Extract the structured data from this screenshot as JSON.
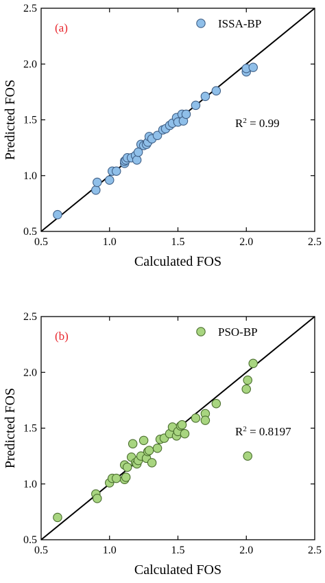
{
  "chart_data": [
    {
      "type": "scatter",
      "panel_label": "(a)",
      "legend_label": "ISSA-BP",
      "r2_label_prefix": "R",
      "r2_label_sup": "2",
      "r2_label_suffix": " = 0.99",
      "xlabel": "Calculated FOS",
      "ylabel": "Predicted FOS",
      "xlim": [
        0.5,
        2.5
      ],
      "ylim": [
        0.5,
        2.5
      ],
      "xticks": [
        "0.5",
        "1.0",
        "1.5",
        "2.0",
        "2.5"
      ],
      "yticks": [
        "0.5",
        "1.0",
        "1.5",
        "2.0",
        "2.5"
      ],
      "reference_line": "y = x",
      "marker_color": "#8fbfe9",
      "marker_edge": "#3f5f86",
      "legend_position": "top-right",
      "grid": false,
      "points": [
        {
          "x": 0.62,
          "y": 0.65
        },
        {
          "x": 0.9,
          "y": 0.87
        },
        {
          "x": 0.91,
          "y": 0.94
        },
        {
          "x": 1.0,
          "y": 0.96
        },
        {
          "x": 1.02,
          "y": 1.04
        },
        {
          "x": 1.05,
          "y": 1.04
        },
        {
          "x": 1.11,
          "y": 1.11
        },
        {
          "x": 1.11,
          "y": 1.13
        },
        {
          "x": 1.12,
          "y": 1.14
        },
        {
          "x": 1.13,
          "y": 1.16
        },
        {
          "x": 1.16,
          "y": 1.16
        },
        {
          "x": 1.19,
          "y": 1.18
        },
        {
          "x": 1.2,
          "y": 1.14
        },
        {
          "x": 1.21,
          "y": 1.21
        },
        {
          "x": 1.23,
          "y": 1.28
        },
        {
          "x": 1.25,
          "y": 1.27
        },
        {
          "x": 1.27,
          "y": 1.28
        },
        {
          "x": 1.28,
          "y": 1.3
        },
        {
          "x": 1.29,
          "y": 1.35
        },
        {
          "x": 1.31,
          "y": 1.33
        },
        {
          "x": 1.35,
          "y": 1.36
        },
        {
          "x": 1.39,
          "y": 1.41
        },
        {
          "x": 1.41,
          "y": 1.42
        },
        {
          "x": 1.44,
          "y": 1.45
        },
        {
          "x": 1.46,
          "y": 1.47
        },
        {
          "x": 1.49,
          "y": 1.52
        },
        {
          "x": 1.5,
          "y": 1.48
        },
        {
          "x": 1.53,
          "y": 1.55
        },
        {
          "x": 1.54,
          "y": 1.49
        },
        {
          "x": 1.56,
          "y": 1.55
        },
        {
          "x": 1.63,
          "y": 1.63
        },
        {
          "x": 1.7,
          "y": 1.71
        },
        {
          "x": 1.78,
          "y": 1.76
        },
        {
          "x": 2.0,
          "y": 1.93
        },
        {
          "x": 2.0,
          "y": 1.96
        },
        {
          "x": 2.05,
          "y": 1.97
        }
      ]
    },
    {
      "type": "scatter",
      "panel_label": "(b)",
      "legend_label": "PSO-BP",
      "r2_label_prefix": "R",
      "r2_label_sup": "2",
      "r2_label_suffix": " = 0.8197",
      "xlabel": "Calculated FOS",
      "ylabel": "Predicted FOS",
      "xlim": [
        0.5,
        2.5
      ],
      "ylim": [
        0.5,
        2.5
      ],
      "xticks": [
        "0.5",
        "1.0",
        "1.5",
        "2.0",
        "2.5"
      ],
      "yticks": [
        "0.5",
        "1.0",
        "1.5",
        "2.0",
        "2.5"
      ],
      "reference_line": "y = x",
      "marker_color": "#a8d580",
      "marker_edge": "#4a6e2e",
      "legend_position": "top-right",
      "grid": false,
      "points": [
        {
          "x": 0.62,
          "y": 0.7
        },
        {
          "x": 0.9,
          "y": 0.91
        },
        {
          "x": 0.91,
          "y": 0.87
        },
        {
          "x": 1.0,
          "y": 1.01
        },
        {
          "x": 1.02,
          "y": 1.05
        },
        {
          "x": 1.05,
          "y": 1.05
        },
        {
          "x": 1.11,
          "y": 1.04
        },
        {
          "x": 1.11,
          "y": 1.17
        },
        {
          "x": 1.12,
          "y": 1.06
        },
        {
          "x": 1.13,
          "y": 1.15
        },
        {
          "x": 1.16,
          "y": 1.24
        },
        {
          "x": 1.17,
          "y": 1.36
        },
        {
          "x": 1.19,
          "y": 1.19
        },
        {
          "x": 1.2,
          "y": 1.18
        },
        {
          "x": 1.21,
          "y": 1.21
        },
        {
          "x": 1.23,
          "y": 1.25
        },
        {
          "x": 1.25,
          "y": 1.39
        },
        {
          "x": 1.27,
          "y": 1.23
        },
        {
          "x": 1.28,
          "y": 1.29
        },
        {
          "x": 1.29,
          "y": 1.3
        },
        {
          "x": 1.31,
          "y": 1.19
        },
        {
          "x": 1.35,
          "y": 1.32
        },
        {
          "x": 1.37,
          "y": 1.4
        },
        {
          "x": 1.4,
          "y": 1.41
        },
        {
          "x": 1.44,
          "y": 1.45
        },
        {
          "x": 1.46,
          "y": 1.51
        },
        {
          "x": 1.49,
          "y": 1.43
        },
        {
          "x": 1.5,
          "y": 1.47
        },
        {
          "x": 1.52,
          "y": 1.52
        },
        {
          "x": 1.53,
          "y": 1.53
        },
        {
          "x": 1.55,
          "y": 1.45
        },
        {
          "x": 1.63,
          "y": 1.59
        },
        {
          "x": 1.7,
          "y": 1.63
        },
        {
          "x": 1.7,
          "y": 1.57
        },
        {
          "x": 1.78,
          "y": 1.72
        },
        {
          "x": 2.0,
          "y": 1.85
        },
        {
          "x": 2.01,
          "y": 1.93
        },
        {
          "x": 2.05,
          "y": 2.08
        },
        {
          "x": 2.01,
          "y": 1.25
        }
      ]
    }
  ]
}
